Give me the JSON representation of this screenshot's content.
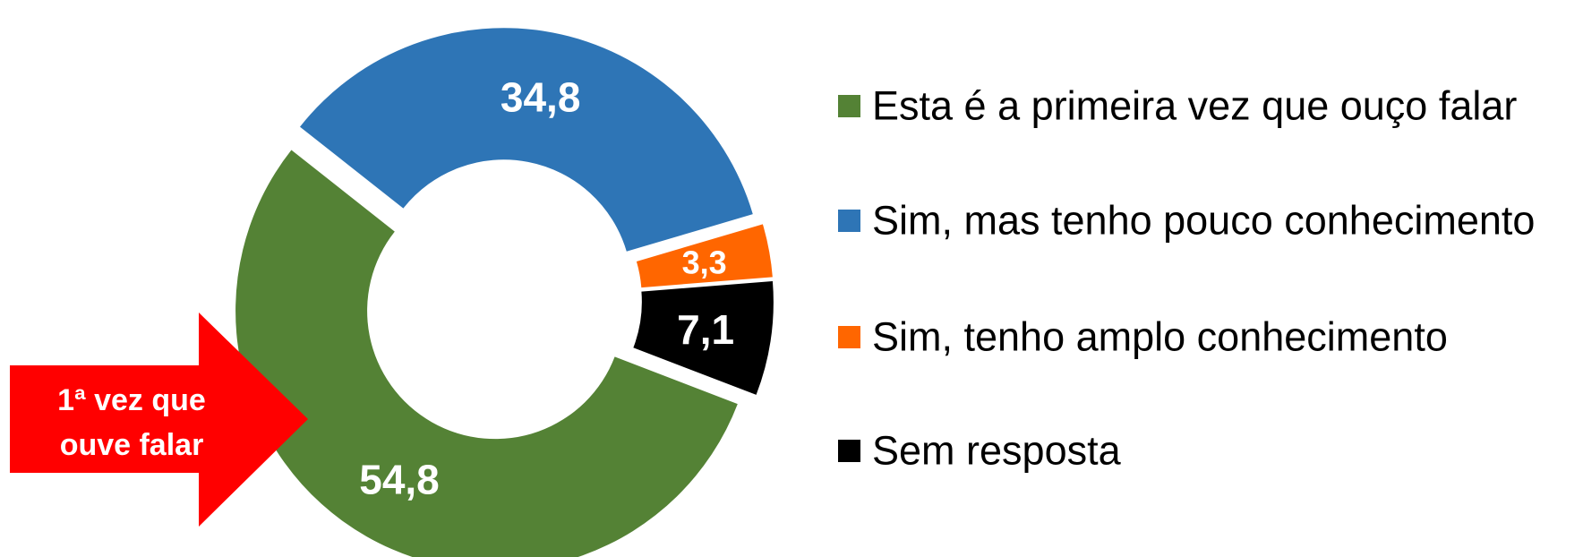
{
  "chart_data": {
    "type": "donut",
    "series": [
      {
        "name": "Esta é a primeira vez que ouço falar",
        "color": "#548235",
        "values": [
          54.8
        ],
        "value_labels": [
          "54,8"
        ]
      },
      {
        "name": "Sim, mas tenho pouco conhecimento",
        "color": "#2e75b6",
        "values": [
          34.8
        ],
        "value_labels": [
          "34,8"
        ]
      },
      {
        "name": "Sim, tenho amplo conhecimento",
        "color": "#ff6600",
        "values": [
          3.3
        ],
        "value_labels": [
          "3,3"
        ]
      },
      {
        "name": "Sem resposta",
        "color": "#000000",
        "values": [
          7.1
        ],
        "value_labels": [
          "7,1"
        ]
      }
    ],
    "annotation": [
      "1ª vez que",
      "ouve falar"
    ]
  }
}
